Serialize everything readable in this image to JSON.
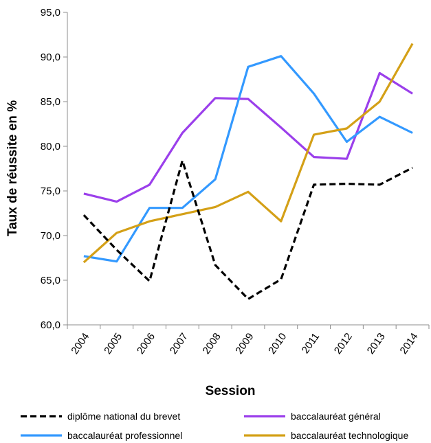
{
  "chart_data": {
    "type": "line",
    "title": "",
    "xlabel": "Session",
    "ylabel": "Taux de réussite en %",
    "categories": [
      "2004",
      "2005",
      "2006",
      "2007",
      "2008",
      "2009",
      "2010",
      "2011",
      "2012",
      "2013",
      "2014"
    ],
    "ylim": [
      60,
      95
    ],
    "yticks": [
      "60,0",
      "65,0",
      "70,0",
      "75,0",
      "80,0",
      "85,0",
      "90,0",
      "95,0"
    ],
    "grid": false,
    "legend_position": "bottom",
    "series": [
      {
        "name": "diplôme national du brevet",
        "color": "#000000",
        "dashed": true,
        "values": [
          72.3,
          68.4,
          64.9,
          78.4,
          66.7,
          62.9,
          65.1,
          75.7,
          75.8,
          75.7,
          77.6
        ]
      },
      {
        "name": "baccalauréat général",
        "color": "#9B3FEB",
        "dashed": false,
        "values": [
          74.7,
          73.8,
          75.7,
          81.5,
          85.4,
          85.3,
          82.1,
          78.8,
          78.6,
          88.2,
          85.9
        ]
      },
      {
        "name": "baccalauréat professionnel",
        "color": "#3399FF",
        "dashed": false,
        "values": [
          67.7,
          67.1,
          73.1,
          73.1,
          76.3,
          88.9,
          90.1,
          85.9,
          80.5,
          83.3,
          81.5
        ]
      },
      {
        "name": "baccalauréat technologique",
        "color": "#D4A017",
        "dashed": false,
        "values": [
          67.0,
          70.3,
          71.6,
          72.4,
          73.2,
          74.9,
          71.6,
          81.3,
          82.0,
          85.0,
          91.5
        ]
      }
    ]
  }
}
